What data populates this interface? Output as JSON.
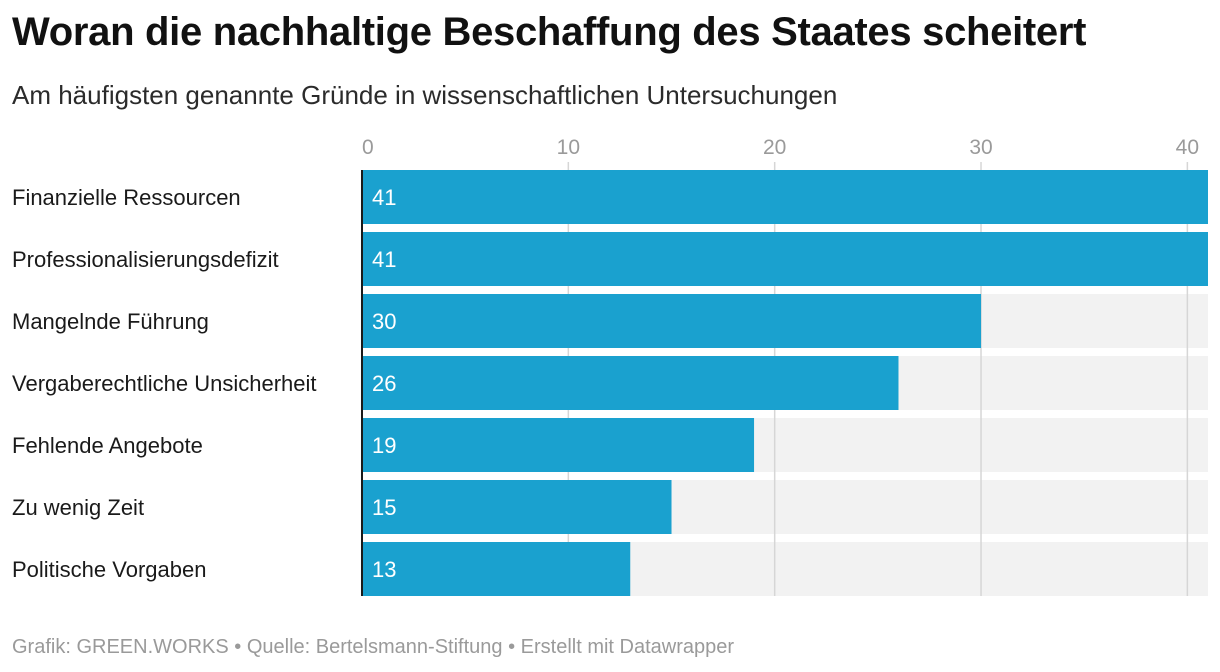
{
  "title": "Woran die nachhaltige Beschaffung des Staates scheitert",
  "subtitle": "Am häufigsten genannte Gründe in wissenschaftlichen Untersuchungen",
  "footer": {
    "credit": "Grafik: GREEN.WORKS",
    "separator_1": " • ",
    "source": "Quelle: Bertelsmann-Stiftung",
    "separator_2": " • ",
    "tool": "Erstellt mit Datawrapper"
  },
  "colors": {
    "bar": "#1aa1cf",
    "track": "#f2f2f2",
    "grid": "#d6d6d6",
    "axis": "#1a1a1a"
  },
  "chart_data": {
    "type": "bar",
    "orientation": "horizontal",
    "title": "Woran die nachhaltige Beschaffung des Staates scheitert",
    "subtitle": "Am häufigsten genannte Gründe in wissenschaftlichen Untersuchungen",
    "xlabel": "",
    "ylabel": "",
    "xlim": [
      0,
      41
    ],
    "ticks": [
      0,
      10,
      20,
      30,
      40
    ],
    "tick_position": "top",
    "grid": true,
    "categories": [
      "Finanzielle Ressourcen",
      "Professionalisierungsdefizit",
      "Mangelnde Führung",
      "Vergaberechtliche Unsicherheit",
      "Fehlende Angebote",
      "Zu wenig Zeit",
      "Politische Vorgaben"
    ],
    "values": [
      41,
      41,
      30,
      26,
      19,
      15,
      13
    ],
    "value_labels": "inside-left"
  }
}
